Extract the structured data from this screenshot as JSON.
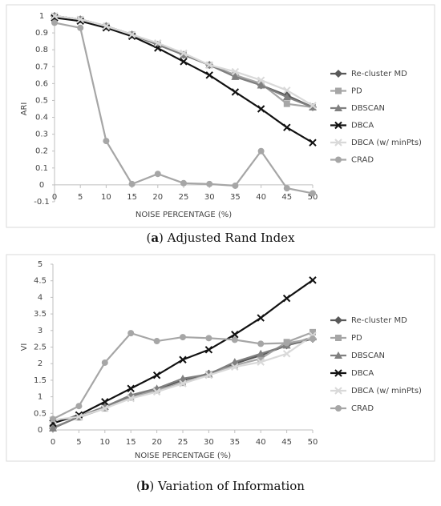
{
  "chart_data": [
    {
      "type": "line",
      "caption": [
        "(",
        "a",
        ") Adjusted Rand Index"
      ],
      "ylabel": "ARI",
      "xlabel": "NOISE PERCENTAGE (%)",
      "x": [
        0,
        5,
        10,
        15,
        20,
        25,
        30,
        35,
        40,
        45,
        50
      ],
      "xlim": [
        0,
        50
      ],
      "xticks": [
        0,
        5,
        10,
        15,
        20,
        25,
        30,
        35,
        40,
        45,
        50
      ],
      "ylim": [
        -0.1,
        1
      ],
      "yticks": [
        -0.1,
        0,
        0.1,
        0.2,
        0.3,
        0.4,
        0.5,
        0.6,
        0.7,
        0.8,
        0.9,
        1
      ],
      "legend": "right",
      "series": [
        {
          "name": "Re-cluster MD",
          "color": "#595959",
          "marker": "diamond",
          "values": [
            1,
            0.98,
            0.94,
            0.89,
            0.83,
            0.77,
            0.71,
            0.65,
            0.59,
            0.53,
            0.46
          ]
        },
        {
          "name": "PD",
          "color": "#a6a6a6",
          "marker": "square",
          "values": [
            1,
            0.98,
            0.94,
            0.89,
            0.83,
            0.77,
            0.71,
            0.65,
            0.6,
            0.48,
            0.46
          ]
        },
        {
          "name": "DBSCAN",
          "color": "#808080",
          "marker": "triangle",
          "values": [
            1,
            0.98,
            0.94,
            0.89,
            0.83,
            0.77,
            0.71,
            0.64,
            0.59,
            0.52,
            0.46
          ]
        },
        {
          "name": "DBCA",
          "color": "#111111",
          "marker": "x",
          "values": [
            0.99,
            0.97,
            0.93,
            0.88,
            0.81,
            0.73,
            0.65,
            0.55,
            0.45,
            0.34,
            0.25
          ]
        },
        {
          "name": "DBCA (w/ minPts)",
          "color": "#d9d9d9",
          "marker": "x",
          "values": [
            1,
            0.98,
            0.94,
            0.89,
            0.84,
            0.78,
            0.71,
            0.67,
            0.62,
            0.56,
            0.47
          ]
        },
        {
          "name": "CRAD",
          "color": "#a6a6a6",
          "marker": "circle",
          "values": [
            0.96,
            0.93,
            0.26,
            0.005,
            0.065,
            0.01,
            0.005,
            -0.005,
            0.2,
            -0.02,
            -0.05
          ]
        }
      ]
    },
    {
      "type": "line",
      "caption": [
        "(",
        "b",
        ") Variation of Information"
      ],
      "ylabel": "VI",
      "xlabel": "NOISE PERCENTAGE (%)",
      "x": [
        0,
        5,
        10,
        15,
        20,
        25,
        30,
        35,
        40,
        45,
        50
      ],
      "xlim": [
        0,
        50
      ],
      "xticks": [
        0,
        5,
        10,
        15,
        20,
        25,
        30,
        35,
        40,
        45,
        50
      ],
      "ylim": [
        0,
        5
      ],
      "yticks": [
        0,
        0.5,
        1,
        1.5,
        2,
        2.5,
        3,
        3.5,
        4,
        4.5,
        5
      ],
      "legend": "right",
      "series": [
        {
          "name": "Re-cluster MD",
          "color": "#595959",
          "marker": "diamond",
          "values": [
            0.05,
            0.4,
            0.7,
            1.02,
            1.22,
            1.5,
            1.7,
            2.0,
            2.25,
            2.55,
            2.75
          ]
        },
        {
          "name": "PD",
          "color": "#a6a6a6",
          "marker": "square",
          "values": [
            0.08,
            0.38,
            0.65,
            0.98,
            1.2,
            1.42,
            1.68,
            1.95,
            2.15,
            2.65,
            2.95
          ]
        },
        {
          "name": "DBSCAN",
          "color": "#808080",
          "marker": "triangle",
          "values": [
            0.05,
            0.4,
            0.7,
            1.05,
            1.25,
            1.55,
            1.68,
            2.05,
            2.3,
            2.55,
            2.8
          ]
        },
        {
          "name": "DBCA",
          "color": "#111111",
          "marker": "x",
          "values": [
            0.2,
            0.45,
            0.85,
            1.25,
            1.65,
            2.12,
            2.42,
            2.88,
            3.38,
            3.97,
            4.52
          ]
        },
        {
          "name": "DBCA (w/ minPts)",
          "color": "#d9d9d9",
          "marker": "x",
          "values": [
            0.3,
            0.4,
            0.65,
            0.95,
            1.15,
            1.4,
            1.65,
            1.9,
            2.05,
            2.3,
            2.85
          ]
        },
        {
          "name": "CRAD",
          "color": "#a6a6a6",
          "marker": "circle",
          "values": [
            0.33,
            0.72,
            2.03,
            2.92,
            2.68,
            2.8,
            2.77,
            2.72,
            2.6,
            2.62,
            2.75
          ]
        }
      ]
    }
  ]
}
